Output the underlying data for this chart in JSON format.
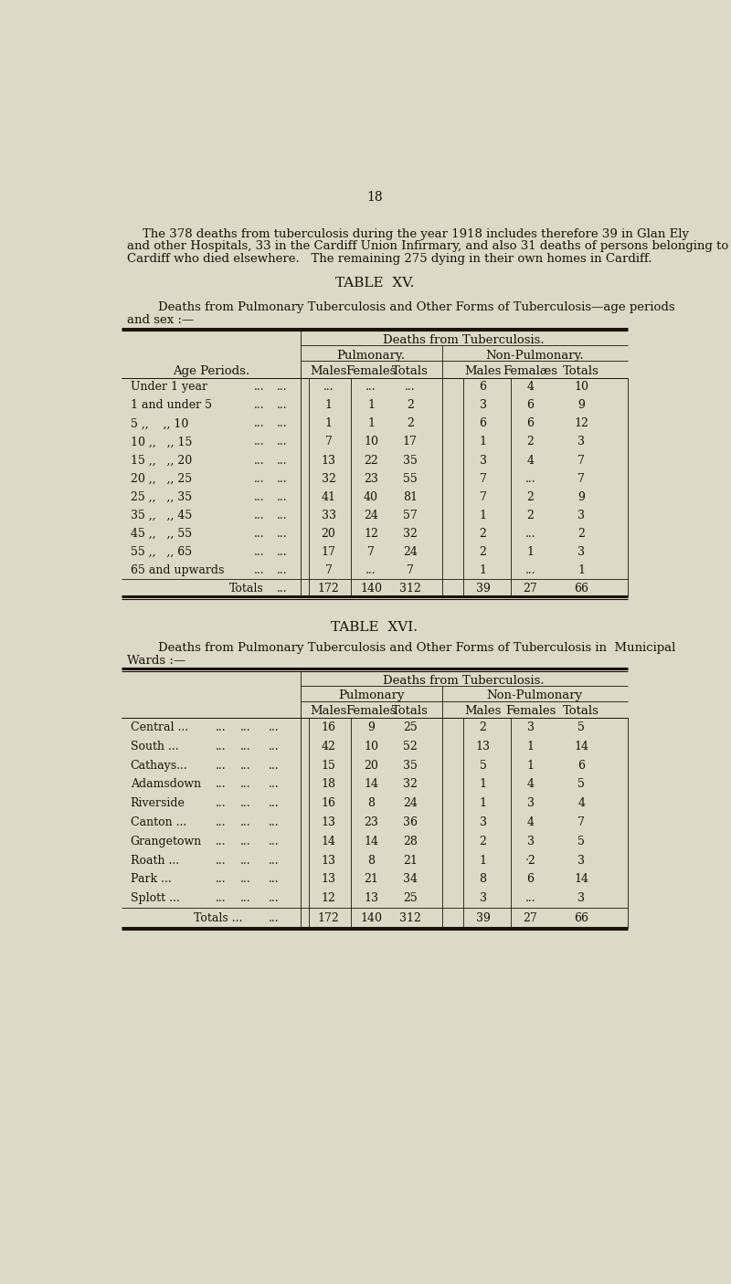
{
  "bg_color": "#ddd9c8",
  "page_number": "18",
  "intro_line1": "    The 378 deaths from tuberculosis during the year 1918 includes therefore 39 in Glan Ely",
  "intro_line2": "and other Hospitals, 33 in the Cardiff Union Infirmary, and also 31 deaths of persons belonging to",
  "intro_line3": "Cardiff who died elsewhere.   The remaining 275 dying in their own homes in Cardiff.",
  "table15_title": "TABLE  XV.",
  "table15_sub1": "        Deaths from Pulmonary Tuberculosis and Other Forms of Tuberculosis—age periods",
  "table15_sub2": "and sex :—",
  "table15_header1": "Deaths from Tuberculosis.",
  "table15_header2a": "Pulmonary.",
  "table15_header2b": "Non-Pulmonary.",
  "table15_col_headers": [
    "Males",
    "Females",
    "Totals",
    "Males",
    "Femalæs",
    "Totals"
  ],
  "table15_row_label": "Age Periods.",
  "table15_rows": [
    [
      "Under 1 year",
      "...",
      "...",
      "...",
      "6",
      "4",
      "10"
    ],
    [
      "1 and under 5",
      "1",
      "1",
      "2",
      "3",
      "6",
      "9"
    ],
    [
      "5 ,,    ,, 10",
      "1",
      "1",
      "2",
      "6",
      "6",
      "12"
    ],
    [
      "10 ,,   ,, 15",
      "7",
      "10",
      "17",
      "1",
      "2",
      "3"
    ],
    [
      "15 ,,   ,, 20",
      "13",
      "22",
      "35",
      "3",
      "4",
      "7"
    ],
    [
      "20 ,,   ,, 25",
      "32",
      "23",
      "55",
      "7",
      "...",
      "7"
    ],
    [
      "25 ,,   ,, 35",
      "41",
      "40",
      "81",
      "7",
      "2",
      "9"
    ],
    [
      "35 ,,   ,, 45",
      "33",
      "24",
      "57",
      "1",
      "2",
      "3"
    ],
    [
      "45 ,,   ,, 55",
      "20",
      "12",
      "32",
      "2",
      "...",
      "2"
    ],
    [
      "55 ,,   ,, 65",
      "17",
      "7",
      "24",
      "2",
      "1",
      "3"
    ],
    [
      "65 and upwards",
      "7",
      "...",
      "7",
      "1",
      "...",
      "1"
    ]
  ],
  "table15_totals": [
    "Totals",
    "172",
    "140",
    "312",
    "39",
    "27",
    "66"
  ],
  "table16_title": "TABLE  XVI.",
  "table16_sub1": "        Deaths from Pulmonary Tuberculosis and Other Forms of Tuberculosis in  Municipal",
  "table16_sub2": "Wards :—",
  "table16_header1": "Deaths from Tuberculosis.",
  "table16_header2a": "Pulmonary",
  "table16_header2b": "Non-Pulmonary",
  "table16_col_headers": [
    "Males",
    "Females",
    "Totals",
    "Males",
    "Females",
    "Totals"
  ],
  "table16_rows": [
    [
      "Central ...",
      "...",
      "...",
      "...",
      "16",
      "9",
      "25",
      "2",
      "3",
      "5"
    ],
    [
      "South ...",
      "...",
      "...",
      "...",
      "42",
      "10",
      "52",
      "13",
      "1",
      "14"
    ],
    [
      "Cathays...",
      "...",
      "...",
      "...",
      "15",
      "20",
      "35",
      "5",
      "1",
      "6"
    ],
    [
      "Adamsdown",
      "...",
      "...",
      "...",
      "18",
      "14",
      "32",
      "1",
      "4",
      "5"
    ],
    [
      "Riverside",
      "...",
      "...",
      "...",
      "16",
      "8",
      "24",
      "1",
      "3",
      "4"
    ],
    [
      "Canton ...",
      "...",
      "...",
      "...",
      "13",
      "23",
      "36",
      "3",
      "4",
      "7"
    ],
    [
      "Grangetown",
      "...",
      "...",
      "...",
      "14",
      "14",
      "28",
      "2",
      "3",
      "5"
    ],
    [
      "Roath ...",
      "...",
      "...",
      "...",
      "13",
      "8",
      "21",
      "1",
      "·2",
      "3"
    ],
    [
      "Park ...",
      "...",
      "...",
      "...",
      "13",
      "21",
      "34",
      "8",
      "6",
      "14"
    ],
    [
      "Splott ...",
      "...",
      "...",
      "...",
      "12",
      "13",
      "25",
      "3",
      "...",
      "3"
    ]
  ],
  "table16_totals": [
    "Totals ...",
    "...",
    "172",
    "140",
    "312",
    "39",
    "27",
    "66"
  ]
}
